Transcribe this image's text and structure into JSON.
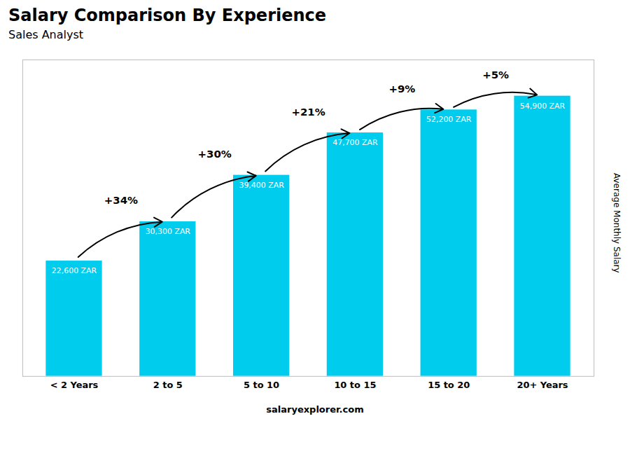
{
  "chart_data": {
    "type": "bar",
    "title": "Salary Comparison By Experience",
    "subtitle": "Sales Analyst",
    "ylabel": "Average Monthly Salary",
    "categories": [
      "< 2 Years",
      "2 to 5",
      "5 to 10",
      "10 to 15",
      "15 to 20",
      "20+ Years"
    ],
    "values": [
      22600,
      30300,
      39400,
      47700,
      52200,
      54900
    ],
    "value_labels": [
      "22,600 ZAR",
      "30,300 ZAR",
      "39,400 ZAR",
      "47,700 ZAR",
      "52,200 ZAR",
      "54,900 ZAR"
    ],
    "data_labels": true,
    "color": "#00ccee",
    "annotations": [
      "+34%",
      "+30%",
      "+21%",
      "+9%",
      "+5%"
    ],
    "caption": "salaryexplorer.com",
    "ylim": [
      0,
      62000
    ],
    "tick_labels": "x",
    "grid": false
  }
}
